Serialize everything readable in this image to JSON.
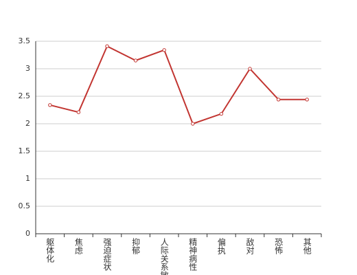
{
  "chart_data": {
    "type": "line",
    "categories": [
      "躯体化",
      "焦虑",
      "强迫症状",
      "抑郁",
      "人际关系敏感",
      "精神病性",
      "偏执",
      "敌对",
      "恐怖",
      "其他"
    ],
    "values": [
      2.34,
      2.21,
      3.41,
      3.15,
      3.34,
      2.0,
      2.18,
      3.0,
      2.44,
      2.44
    ],
    "color": "#c23531",
    "ylim": [
      0,
      3.5
    ],
    "yticks": [
      0,
      0.5,
      1,
      1.5,
      2,
      2.5,
      3,
      3.5
    ],
    "grid": true
  }
}
